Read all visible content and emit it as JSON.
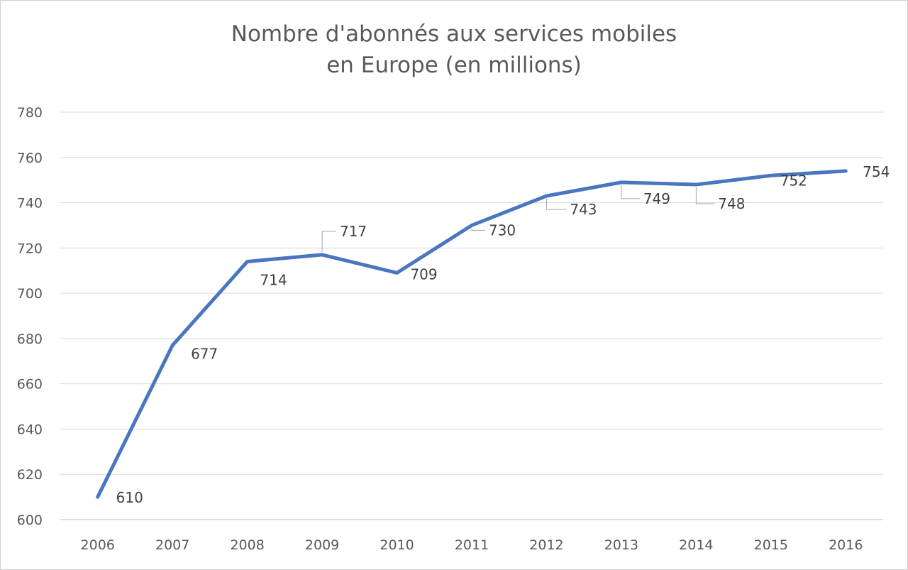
{
  "chart_data": {
    "type": "line",
    "title": [
      "Nombre d'abonnés aux services mobiles",
      "en Europe (en millions)"
    ],
    "xlabel": "",
    "ylabel": "",
    "categories": [
      "2006",
      "2007",
      "2008",
      "2009",
      "2010",
      "2011",
      "2012",
      "2013",
      "2014",
      "2015",
      "2016"
    ],
    "series": [
      {
        "values": [
          610,
          677,
          714,
          717,
          709,
          730,
          743,
          749,
          748,
          752,
          754
        ],
        "color": "#4a76c0"
      }
    ],
    "data_labels": [
      "610",
      "677",
      "714",
      "717",
      "709",
      "730",
      "743",
      "749",
      "748",
      "752",
      "754"
    ],
    "ylim": [
      600,
      780
    ],
    "yticks": [
      "600",
      "620",
      "640",
      "660",
      "680",
      "700",
      "720",
      "740",
      "760",
      "780"
    ],
    "grid": true,
    "legend": "none",
    "gridline_color": "#d9d9d9"
  }
}
